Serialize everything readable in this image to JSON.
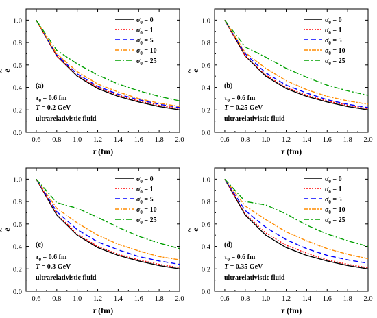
{
  "charts": [
    {
      "panel_label": "(a)",
      "tau0_label": "τ",
      "tau0_sub": "0",
      "tau0_value": " = 0.6 fm",
      "temp_label": "T",
      "temp_value": " = 0.2 GeV",
      "fluid_label": "ultrarelativistic fluid",
      "xlabel_sym": "τ",
      "xlabel_unit": " (fm)",
      "ylabel": "e",
      "ylabel_accent": "~"
    },
    {
      "panel_label": "(b)",
      "tau0_label": "τ",
      "tau0_sub": "0",
      "tau0_value": " = 0.6 fm",
      "temp_label": "T",
      "temp_value": " = 0.25 GeV",
      "fluid_label": "ultrarelativistic fluid",
      "xlabel_sym": "τ",
      "xlabel_unit": " (fm)",
      "ylabel": "e",
      "ylabel_accent": "~"
    },
    {
      "panel_label": "(c)",
      "tau0_label": "τ",
      "tau0_sub": "0",
      "tau0_value": " = 0.6 fm",
      "temp_label": "T",
      "temp_value": " = 0.3 GeV",
      "fluid_label": "ultrarelativistic fluid",
      "xlabel_sym": "τ",
      "xlabel_unit": " (fm)",
      "ylabel": "e",
      "ylabel_accent": "~"
    },
    {
      "panel_label": "(d)",
      "tau0_label": "τ",
      "tau0_sub": "0",
      "tau0_value": " = 0.6 fm",
      "temp_label": "T",
      "temp_value": " = 0.35 GeV",
      "fluid_label": "ultrarelativistic fluid",
      "xlabel_sym": "τ",
      "xlabel_unit": " (fm)",
      "ylabel": "e",
      "ylabel_accent": "~"
    }
  ],
  "chart_data": [
    {
      "type": "line",
      "panel": "(a)",
      "xlabel": "τ (fm)",
      "ylabel": "ẽ",
      "xlim": [
        0.5,
        2.0
      ],
      "ylim": [
        0.0,
        1.1
      ],
      "xticks": [
        "0.6",
        "0.8",
        "1.0",
        "1.2",
        "1.4",
        "1.6",
        "1.8",
        "2.0"
      ],
      "yticks": [
        "0.0",
        "0.2",
        "0.4",
        "0.6",
        "0.8",
        "1.0"
      ],
      "legend_position": "top-right",
      "x": [
        0.6,
        0.8,
        1.0,
        1.2,
        1.4,
        1.6,
        1.8,
        2.0
      ],
      "series": [
        {
          "name": "σ0 = 0",
          "sym": "σ",
          "sub": "0",
          "eq": " = 0",
          "color": "#000000",
          "dash": "",
          "values": [
            1.0,
            0.68,
            0.5,
            0.39,
            0.32,
            0.27,
            0.23,
            0.2
          ]
        },
        {
          "name": "σ0 = 1",
          "sym": "σ",
          "sub": "0",
          "eq": " = 1",
          "color": "#ff0000",
          "dash": "2,2",
          "values": [
            1.0,
            0.68,
            0.51,
            0.4,
            0.33,
            0.28,
            0.24,
            0.21
          ]
        },
        {
          "name": "σ0 = 5",
          "sym": "σ",
          "sub": "0",
          "eq": " = 5",
          "color": "#0000ff",
          "dash": "7,4",
          "values": [
            1.0,
            0.69,
            0.52,
            0.41,
            0.34,
            0.29,
            0.25,
            0.22
          ]
        },
        {
          "name": "σ0 = 10",
          "sym": "σ",
          "sub": "0",
          "eq": " = 10",
          "color": "#ff8c00",
          "dash": "6,2,2,2",
          "values": [
            1.0,
            0.7,
            0.54,
            0.43,
            0.36,
            0.3,
            0.26,
            0.23
          ]
        },
        {
          "name": "σ0 = 25",
          "sym": "σ",
          "sub": "0",
          "eq": " = 25",
          "color": "#00a000",
          "dash": "8,3,2,3",
          "values": [
            1.0,
            0.73,
            0.61,
            0.51,
            0.43,
            0.37,
            0.32,
            0.28
          ]
        }
      ]
    },
    {
      "type": "line",
      "panel": "(b)",
      "xlabel": "τ (fm)",
      "ylabel": "ẽ",
      "xlim": [
        0.5,
        2.0
      ],
      "ylim": [
        0.0,
        1.1
      ],
      "xticks": [
        "0.6",
        "0.8",
        "1.0",
        "1.2",
        "1.4",
        "1.6",
        "1.8",
        "2.0"
      ],
      "yticks": [
        "0.0",
        "0.2",
        "0.4",
        "0.6",
        "0.8",
        "1.0"
      ],
      "legend_position": "top-right",
      "x": [
        0.6,
        0.8,
        1.0,
        1.2,
        1.4,
        1.6,
        1.8,
        2.0
      ],
      "series": [
        {
          "name": "σ0 = 0",
          "sym": "σ",
          "sub": "0",
          "eq": " = 0",
          "color": "#000000",
          "dash": "",
          "values": [
            1.0,
            0.68,
            0.5,
            0.39,
            0.32,
            0.27,
            0.23,
            0.2
          ]
        },
        {
          "name": "σ0 = 1",
          "sym": "σ",
          "sub": "0",
          "eq": " = 1",
          "color": "#ff0000",
          "dash": "2,2",
          "values": [
            1.0,
            0.68,
            0.51,
            0.4,
            0.33,
            0.28,
            0.24,
            0.21
          ]
        },
        {
          "name": "σ0 = 5",
          "sym": "σ",
          "sub": "0",
          "eq": " = 5",
          "color": "#0000ff",
          "dash": "7,4",
          "values": [
            1.0,
            0.7,
            0.53,
            0.42,
            0.35,
            0.29,
            0.25,
            0.22
          ]
        },
        {
          "name": "σ0 = 10",
          "sym": "σ",
          "sub": "0",
          "eq": " = 10",
          "color": "#ff8c00",
          "dash": "6,2,2,2",
          "values": [
            1.0,
            0.71,
            0.57,
            0.46,
            0.38,
            0.32,
            0.28,
            0.25
          ]
        },
        {
          "name": "σ0 = 25",
          "sym": "σ",
          "sub": "0",
          "eq": " = 25",
          "color": "#00a000",
          "dash": "8,3,2,3",
          "values": [
            1.0,
            0.76,
            0.67,
            0.57,
            0.49,
            0.42,
            0.37,
            0.33
          ]
        }
      ]
    },
    {
      "type": "line",
      "panel": "(c)",
      "xlabel": "τ (fm)",
      "ylabel": "ẽ",
      "xlim": [
        0.5,
        2.0
      ],
      "ylim": [
        0.0,
        1.1
      ],
      "xticks": [
        "0.6",
        "0.8",
        "1.0",
        "1.2",
        "1.4",
        "1.6",
        "1.8",
        "2.0"
      ],
      "yticks": [
        "0.0",
        "0.2",
        "0.4",
        "0.6",
        "0.8",
        "1.0"
      ],
      "legend_position": "top-right",
      "x": [
        0.6,
        0.8,
        1.0,
        1.2,
        1.4,
        1.6,
        1.8,
        2.0
      ],
      "series": [
        {
          "name": "σ0 = 0",
          "sym": "σ",
          "sub": "0",
          "eq": " = 0",
          "color": "#000000",
          "dash": "",
          "values": [
            1.0,
            0.68,
            0.5,
            0.39,
            0.32,
            0.27,
            0.23,
            0.2
          ]
        },
        {
          "name": "σ0 = 1",
          "sym": "σ",
          "sub": "0",
          "eq": " = 1",
          "color": "#ff0000",
          "dash": "2,2",
          "values": [
            1.0,
            0.69,
            0.51,
            0.4,
            0.33,
            0.28,
            0.24,
            0.21
          ]
        },
        {
          "name": "σ0 = 5",
          "sym": "σ",
          "sub": "0",
          "eq": " = 5",
          "color": "#0000ff",
          "dash": "7,4",
          "values": [
            1.0,
            0.71,
            0.55,
            0.44,
            0.37,
            0.31,
            0.27,
            0.24
          ]
        },
        {
          "name": "σ0 = 10",
          "sym": "σ",
          "sub": "0",
          "eq": " = 10",
          "color": "#ff8c00",
          "dash": "6,2,2,2",
          "values": [
            1.0,
            0.74,
            0.61,
            0.5,
            0.42,
            0.36,
            0.31,
            0.28
          ]
        },
        {
          "name": "σ0 = 25",
          "sym": "σ",
          "sub": "0",
          "eq": " = 25",
          "color": "#00a000",
          "dash": "8,3,2,3",
          "values": [
            1.0,
            0.79,
            0.74,
            0.66,
            0.57,
            0.49,
            0.43,
            0.38
          ]
        }
      ]
    },
    {
      "type": "line",
      "panel": "(d)",
      "xlabel": "τ (fm)",
      "ylabel": "ẽ",
      "xlim": [
        0.5,
        2.0
      ],
      "ylim": [
        0.0,
        1.1
      ],
      "xticks": [
        "0.6",
        "0.8",
        "1.0",
        "1.2",
        "1.4",
        "1.6",
        "1.8",
        "2.0"
      ],
      "yticks": [
        "0.0",
        "0.2",
        "0.4",
        "0.6",
        "0.8",
        "1.0"
      ],
      "legend_position": "top-right",
      "x": [
        0.6,
        0.8,
        1.0,
        1.2,
        1.4,
        1.6,
        1.8,
        2.0
      ],
      "series": [
        {
          "name": "σ0 = 0",
          "sym": "σ",
          "sub": "0",
          "eq": " = 0",
          "color": "#000000",
          "dash": "",
          "values": [
            1.0,
            0.68,
            0.5,
            0.39,
            0.32,
            0.27,
            0.23,
            0.2
          ]
        },
        {
          "name": "σ0 = 1",
          "sym": "σ",
          "sub": "0",
          "eq": " = 1",
          "color": "#ff0000",
          "dash": "2,2",
          "values": [
            1.0,
            0.69,
            0.52,
            0.41,
            0.34,
            0.28,
            0.24,
            0.21
          ]
        },
        {
          "name": "σ0 = 5",
          "sym": "σ",
          "sub": "0",
          "eq": " = 5",
          "color": "#0000ff",
          "dash": "7,4",
          "values": [
            1.0,
            0.72,
            0.57,
            0.46,
            0.38,
            0.32,
            0.28,
            0.25
          ]
        },
        {
          "name": "σ0 = 10",
          "sym": "σ",
          "sub": "0",
          "eq": " = 10",
          "color": "#ff8c00",
          "dash": "6,2,2,2",
          "values": [
            1.0,
            0.76,
            0.64,
            0.53,
            0.45,
            0.38,
            0.33,
            0.29
          ]
        },
        {
          "name": "σ0 = 25",
          "sym": "σ",
          "sub": "0",
          "eq": " = 25",
          "color": "#00a000",
          "dash": "8,3,2,3",
          "values": [
            1.0,
            0.8,
            0.77,
            0.69,
            0.59,
            0.51,
            0.45,
            0.4
          ]
        }
      ]
    }
  ]
}
